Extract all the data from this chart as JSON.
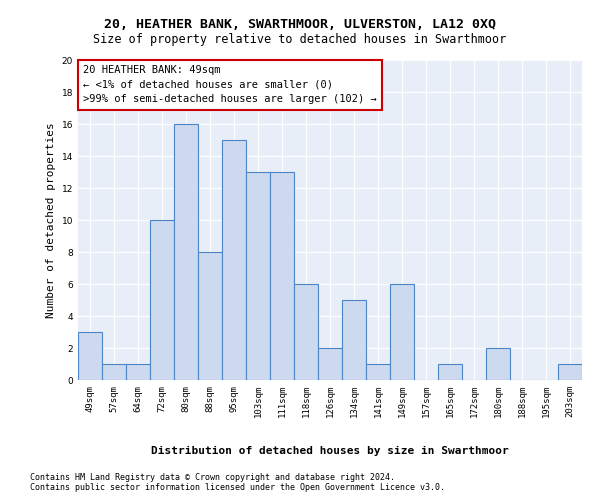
{
  "title1": "20, HEATHER BANK, SWARTHMOOR, ULVERSTON, LA12 0XQ",
  "title2": "Size of property relative to detached houses in Swarthmoor",
  "xlabel": "Distribution of detached houses by size in Swarthmoor",
  "ylabel": "Number of detached properties",
  "categories": [
    "49sqm",
    "57sqm",
    "64sqm",
    "72sqm",
    "80sqm",
    "88sqm",
    "95sqm",
    "103sqm",
    "111sqm",
    "118sqm",
    "126sqm",
    "134sqm",
    "141sqm",
    "149sqm",
    "157sqm",
    "165sqm",
    "172sqm",
    "180sqm",
    "188sqm",
    "195sqm",
    "203sqm"
  ],
  "values": [
    3,
    1,
    1,
    10,
    16,
    8,
    15,
    13,
    13,
    6,
    2,
    5,
    1,
    6,
    0,
    1,
    0,
    2,
    0,
    0,
    1
  ],
  "bar_color": "#ccd9ee",
  "bar_edge_color": "#4a86c8",
  "annotation_line1": "20 HEATHER BANK: 49sqm",
  "annotation_line2": "← <1% of detached houses are smaller (0)",
  "annotation_line3": ">99% of semi-detached houses are larger (102) →",
  "annotation_box_color": "#ffffff",
  "annotation_box_edge_color": "#cc0000",
  "ylim": [
    0,
    20
  ],
  "yticks": [
    0,
    2,
    4,
    6,
    8,
    10,
    12,
    14,
    16,
    18,
    20
  ],
  "footer1": "Contains HM Land Registry data © Crown copyright and database right 2024.",
  "footer2": "Contains public sector information licensed under the Open Government Licence v3.0.",
  "background_color": "#e8eef8",
  "grid_color": "#ffffff",
  "title_fontsize": 9.5,
  "subtitle_fontsize": 8.5,
  "ylabel_fontsize": 8,
  "xlabel_fontsize": 8,
  "tick_fontsize": 6.5,
  "annotation_fontsize": 7.5,
  "footer_fontsize": 6
}
